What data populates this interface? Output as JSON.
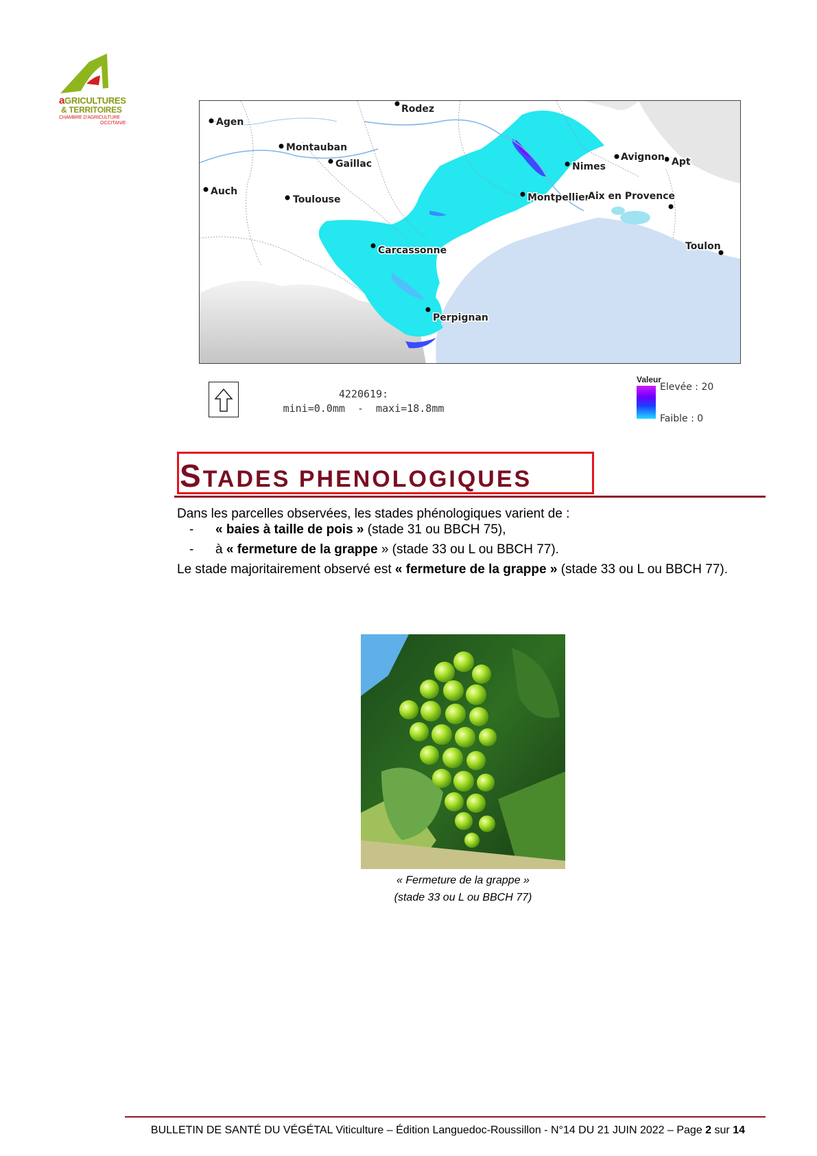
{
  "logo": {
    "line1_a": "a",
    "line1_rest": "GRICULTURES",
    "line2": "& TERRITOIRES",
    "line3": "CHAMBRE D'AGRICULTURE",
    "line4": "OCCITANIE"
  },
  "map": {
    "cities": [
      "Agen",
      "Rodez",
      "Montauban",
      "Gaillac",
      "Auch",
      "Toulouse",
      "Avignon",
      "Apt",
      "Nimes",
      "Montpellier",
      "Aix en Provence",
      "Carcassonne",
      "Toulon",
      "Perpignan"
    ],
    "stats_id": "4220619:",
    "stats_range": "mini=0.0mm  -  maxi=18.8mm",
    "legend": {
      "title": "Valeur",
      "high": "Elevée : 20",
      "low": "Faible : 0"
    }
  },
  "section": {
    "title_first": "S",
    "title_rest": "TADES PHENOLOGIQUES"
  },
  "body": {
    "intro": "Dans les parcelles observées, les stades phénologiques varient de :",
    "bullets": [
      {
        "dash": "-",
        "pre": "",
        "bold": "« baies à taille de pois »",
        "post": " (stade 31 ou BBCH 75),"
      },
      {
        "dash": "-",
        "pre": "à ",
        "bold": "« fermeture de la grappe",
        "post": " » (stade 33 ou L ou BBCH 77)."
      }
    ],
    "summary_pre": "Le stade majoritairement observé est ",
    "summary_bold": "« fermeture de la grappe »",
    "summary_post": " (stade 33 ou L ou BBCH 77)."
  },
  "photo": {
    "caption_line1": "« Fermeture de la grappe »",
    "caption_line2": "(stade 33 ou L ou BBCH 77)"
  },
  "footer": {
    "text": "BULLETIN DE SANTÉ DU VÉGÉTAL Viticulture – Édition Languedoc-Roussillon - N°14 DU 21 JUIN 2022 – Page ",
    "page": "2",
    "sep": " sur ",
    "total": "14"
  },
  "colors": {
    "title": "#7a0e22",
    "title_box": "#e2151b",
    "rule": "#8b1a2b",
    "rain_low": "#24e7f0",
    "rain_high": "#d017ff",
    "sea": "#cfe0f5"
  }
}
